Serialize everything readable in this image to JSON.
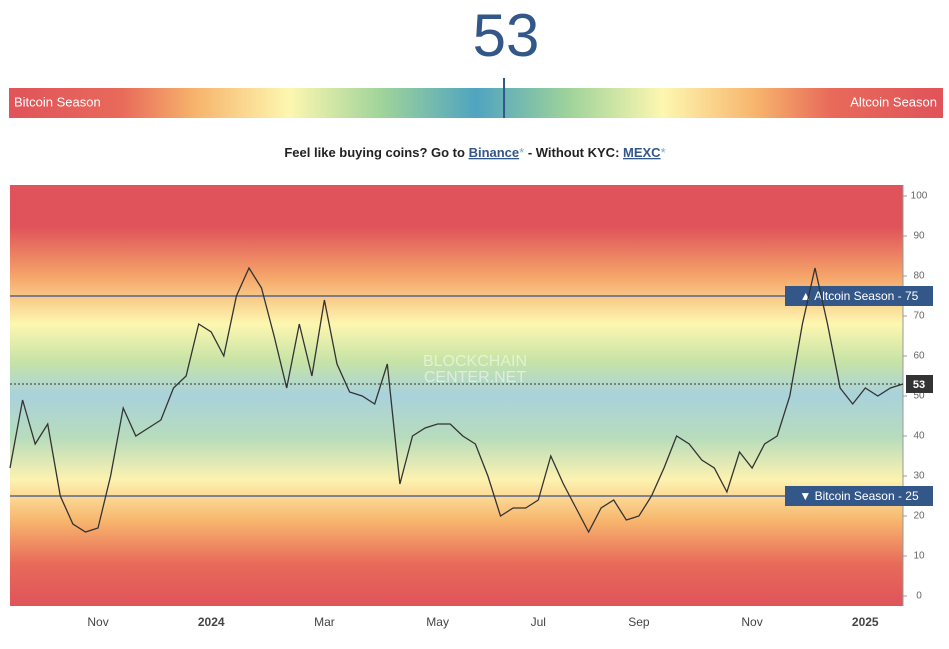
{
  "chart_data": {
    "type": "line",
    "current": 53,
    "bar_left": "Bitcoin Season",
    "bar_right": "Altcoin Season",
    "promo": {
      "pre": "Feel like buying coins? Go to ",
      "link1": "Binance",
      "star": "*",
      "mid": " - Without KYC: ",
      "link2": "MEXC"
    },
    "watermark": [
      "BLOCKCHAIN",
      "CENTER.NET"
    ],
    "categories": [
      null,
      null,
      null,
      null,
      null,
      null,
      null,
      "Nov",
      null,
      null,
      null,
      null,
      null,
      null,
      null,
      null,
      "2024",
      null,
      null,
      null,
      null,
      null,
      null,
      null,
      null,
      "Mar",
      null,
      null,
      null,
      null,
      null,
      null,
      null,
      null,
      "May",
      null,
      null,
      null,
      null,
      null,
      null,
      null,
      "Jul",
      null,
      null,
      null,
      null,
      null,
      null,
      null,
      "Sep",
      null,
      null,
      null,
      null,
      null,
      null,
      null,
      null,
      "Nov",
      null,
      null,
      null,
      null,
      null,
      null,
      null,
      null,
      "2025",
      null,
      null,
      null
    ],
    "series": [
      {
        "color": "#333333",
        "values": [
          32,
          49,
          38,
          43,
          25,
          18,
          16,
          17,
          30,
          47,
          40,
          42,
          44,
          52,
          55,
          68,
          66,
          60,
          75,
          82,
          77,
          65,
          52,
          68,
          55,
          74,
          58,
          51,
          50,
          48,
          58,
          28,
          40,
          42,
          43,
          43,
          40,
          38,
          30,
          20,
          22,
          22,
          24,
          35,
          28,
          22,
          16,
          22,
          24,
          19,
          20,
          25,
          32,
          40,
          38,
          34,
          32,
          26,
          36,
          32,
          38,
          40,
          50,
          68,
          82,
          68,
          52,
          48,
          52,
          50,
          52,
          53
        ]
      }
    ],
    "thresholds": [
      {
        "value": 75,
        "label": "▲ Altcoin Season - 75"
      },
      {
        "value": 25,
        "label": "▼ Bitcoin Season - 25"
      }
    ],
    "ylim": [
      0,
      100
    ],
    "yticks": [
      0,
      10,
      20,
      30,
      40,
      50,
      60,
      70,
      80,
      90,
      100
    ]
  }
}
